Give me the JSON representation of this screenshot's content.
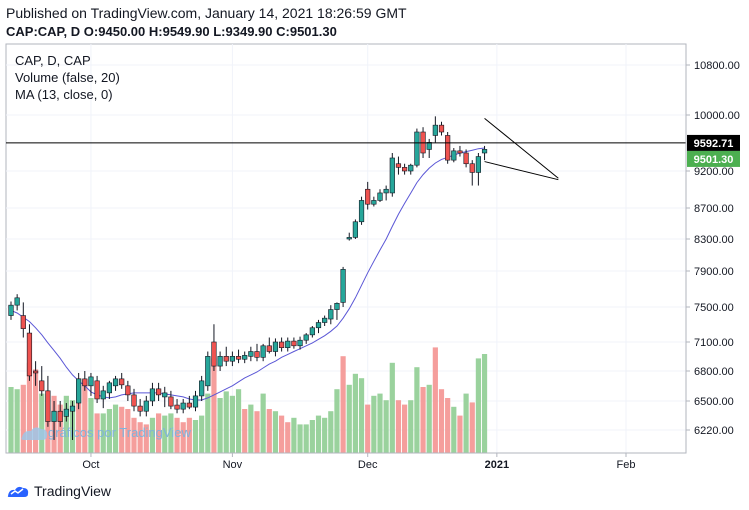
{
  "header": {
    "published": "Published on TradingView.com, January 14, 2021 18:26:59 GMT",
    "symbol": "CAP:CAP, D",
    "ohlc": {
      "o_label": "O:",
      "o": "9450.00",
      "h_label": "H:",
      "h": "9549.90",
      "l_label": "L:",
      "l": "9349.90",
      "c_label": "C:",
      "c": "9501.30"
    }
  },
  "legend": {
    "title": "CAP, D, CAP",
    "volume": "Volume (false, 20)",
    "ma": "MA (13, close, 0)"
  },
  "watermark": "gráficos por TradingView",
  "footer": {
    "brand": "TradingView"
  },
  "colors": {
    "up": "#26a69a",
    "down": "#ef5350",
    "vol_up": "#8fcd92",
    "vol_down": "#f49391",
    "ma": "#5b57d6",
    "price_tag": "#4caf50",
    "hline_tag": "#000000"
  },
  "chart_data": {
    "type": "candlestick",
    "y_ticks": [
      "10800.00",
      "10000.00",
      "9200.00",
      "8700.00",
      "8300.00",
      "7900.00",
      "7500.00",
      "7100.00",
      "6800.00",
      "6500.00",
      "6220.00"
    ],
    "y_tick_values": [
      10800,
      10000,
      9200,
      8700,
      8300,
      7900,
      7500,
      7100,
      6800,
      6500,
      6220
    ],
    "x_labels": [
      "Oct",
      "Nov",
      "Dec",
      "2021",
      "Feb"
    ],
    "x_label_index": [
      13,
      36,
      58,
      79,
      100
    ],
    "log_scale": true,
    "grid": true,
    "horizontal_line": {
      "price": 9592.71,
      "label": "9592.71"
    },
    "last_price": {
      "price": 9501.3,
      "label": "9501.30"
    },
    "triangle_lines": [
      {
        "from": [
          77,
          9950
        ],
        "to": [
          89,
          9100
        ]
      },
      {
        "from": [
          77,
          9330
        ],
        "to": [
          89,
          9080
        ]
      }
    ],
    "candles": [
      {
        "o": 7400,
        "h": 7560,
        "l": 7350,
        "c": 7520
      },
      {
        "o": 7520,
        "h": 7640,
        "l": 7460,
        "c": 7600
      },
      {
        "o": 7400,
        "h": 7550,
        "l": 7150,
        "c": 7250
      },
      {
        "o": 7200,
        "h": 7300,
        "l": 6700,
        "c": 6750
      },
      {
        "o": 6800,
        "h": 6900,
        "l": 6650,
        "c": 6780
      },
      {
        "o": 6700,
        "h": 6850,
        "l": 6550,
        "c": 6600
      },
      {
        "o": 6600,
        "h": 6750,
        "l": 6250,
        "c": 6300
      },
      {
        "o": 6300,
        "h": 6500,
        "l": 6200,
        "c": 6400
      },
      {
        "o": 6400,
        "h": 6500,
        "l": 6250,
        "c": 6300
      },
      {
        "o": 6350,
        "h": 6480,
        "l": 6300,
        "c": 6420
      },
      {
        "o": 6400,
        "h": 6500,
        "l": 6200,
        "c": 6450
      },
      {
        "o": 6480,
        "h": 6780,
        "l": 6420,
        "c": 6720
      },
      {
        "o": 6720,
        "h": 6800,
        "l": 6600,
        "c": 6650
      },
      {
        "o": 6650,
        "h": 6780,
        "l": 6550,
        "c": 6740
      },
      {
        "o": 6700,
        "h": 6750,
        "l": 6480,
        "c": 6520
      },
      {
        "o": 6520,
        "h": 6650,
        "l": 6430,
        "c": 6600
      },
      {
        "o": 6580,
        "h": 6700,
        "l": 6520,
        "c": 6680
      },
      {
        "o": 6650,
        "h": 6750,
        "l": 6600,
        "c": 6720
      },
      {
        "o": 6720,
        "h": 6780,
        "l": 6620,
        "c": 6660
      },
      {
        "o": 6650,
        "h": 6700,
        "l": 6500,
        "c": 6560
      },
      {
        "o": 6560,
        "h": 6620,
        "l": 6400,
        "c": 6450
      },
      {
        "o": 6450,
        "h": 6520,
        "l": 6350,
        "c": 6400
      },
      {
        "o": 6400,
        "h": 6550,
        "l": 6350,
        "c": 6500
      },
      {
        "o": 6500,
        "h": 6680,
        "l": 6450,
        "c": 6620
      },
      {
        "o": 6620,
        "h": 6680,
        "l": 6500,
        "c": 6560
      },
      {
        "o": 6540,
        "h": 6640,
        "l": 6440,
        "c": 6580
      },
      {
        "o": 6540,
        "h": 6600,
        "l": 6420,
        "c": 6450
      },
      {
        "o": 6460,
        "h": 6520,
        "l": 6380,
        "c": 6420
      },
      {
        "o": 6420,
        "h": 6520,
        "l": 6380,
        "c": 6480
      },
      {
        "o": 6480,
        "h": 6550,
        "l": 6420,
        "c": 6440
      },
      {
        "o": 6440,
        "h": 6600,
        "l": 6400,
        "c": 6550
      },
      {
        "o": 6550,
        "h": 6750,
        "l": 6500,
        "c": 6700
      },
      {
        "o": 6650,
        "h": 7000,
        "l": 6600,
        "c": 6950
      },
      {
        "o": 7100,
        "h": 7300,
        "l": 6800,
        "c": 6850
      },
      {
        "o": 6850,
        "h": 7000,
        "l": 6800,
        "c": 6950
      },
      {
        "o": 6950,
        "h": 7050,
        "l": 6850,
        "c": 6900
      },
      {
        "o": 6900,
        "h": 7000,
        "l": 6850,
        "c": 6950
      },
      {
        "o": 6950,
        "h": 7020,
        "l": 6880,
        "c": 6920
      },
      {
        "o": 6920,
        "h": 7000,
        "l": 6880,
        "c": 6960
      },
      {
        "o": 6950,
        "h": 7050,
        "l": 6900,
        "c": 7000
      },
      {
        "o": 7000,
        "h": 7080,
        "l": 6900,
        "c": 6940
      },
      {
        "o": 6940,
        "h": 7080,
        "l": 6900,
        "c": 7060
      },
      {
        "o": 7060,
        "h": 7150,
        "l": 6980,
        "c": 7000
      },
      {
        "o": 7000,
        "h": 7140,
        "l": 6950,
        "c": 7100
      },
      {
        "o": 7100,
        "h": 7150,
        "l": 7000,
        "c": 7040
      },
      {
        "o": 7040,
        "h": 7150,
        "l": 7000,
        "c": 7110
      },
      {
        "o": 7110,
        "h": 7150,
        "l": 7030,
        "c": 7060
      },
      {
        "o": 7060,
        "h": 7160,
        "l": 7020,
        "c": 7120
      },
      {
        "o": 7120,
        "h": 7200,
        "l": 7080,
        "c": 7180
      },
      {
        "o": 7180,
        "h": 7280,
        "l": 7150,
        "c": 7260
      },
      {
        "o": 7260,
        "h": 7350,
        "l": 7200,
        "c": 7320
      },
      {
        "o": 7320,
        "h": 7400,
        "l": 7280,
        "c": 7370
      },
      {
        "o": 7360,
        "h": 7520,
        "l": 7300,
        "c": 7470
      },
      {
        "o": 7470,
        "h": 7550,
        "l": 7350,
        "c": 7540
      },
      {
        "o": 7550,
        "h": 7950,
        "l": 7500,
        "c": 7920
      },
      {
        "o": 8300,
        "h": 8380,
        "l": 8280,
        "c": 8320
      },
      {
        "o": 8320,
        "h": 8550,
        "l": 8300,
        "c": 8520
      },
      {
        "o": 8520,
        "h": 8850,
        "l": 8480,
        "c": 8800
      },
      {
        "o": 8950,
        "h": 9050,
        "l": 8680,
        "c": 8750
      },
      {
        "o": 8750,
        "h": 8850,
        "l": 8720,
        "c": 8800
      },
      {
        "o": 8800,
        "h": 8950,
        "l": 8780,
        "c": 8900
      },
      {
        "o": 8900,
        "h": 9000,
        "l": 8800,
        "c": 8950
      },
      {
        "o": 8900,
        "h": 9450,
        "l": 8850,
        "c": 9380
      },
      {
        "o": 9300,
        "h": 9400,
        "l": 9150,
        "c": 9250
      },
      {
        "o": 9250,
        "h": 9300,
        "l": 9150,
        "c": 9200
      },
      {
        "o": 9200,
        "h": 9300,
        "l": 9150,
        "c": 9280
      },
      {
        "o": 9280,
        "h": 9800,
        "l": 9250,
        "c": 9750
      },
      {
        "o": 9750,
        "h": 9820,
        "l": 9380,
        "c": 9450
      },
      {
        "o": 9500,
        "h": 9650,
        "l": 9380,
        "c": 9600
      },
      {
        "o": 9700,
        "h": 9980,
        "l": 9600,
        "c": 9850
      },
      {
        "o": 9850,
        "h": 9900,
        "l": 9700,
        "c": 9750
      },
      {
        "o": 9700,
        "h": 9750,
        "l": 9300,
        "c": 9350
      },
      {
        "o": 9350,
        "h": 9520,
        "l": 9320,
        "c": 9480
      },
      {
        "o": 9480,
        "h": 9550,
        "l": 9400,
        "c": 9450
      },
      {
        "o": 9450,
        "h": 9500,
        "l": 9250,
        "c": 9300
      },
      {
        "o": 9300,
        "h": 9350,
        "l": 9000,
        "c": 9180
      },
      {
        "o": 9180,
        "h": 9450,
        "l": 9000,
        "c": 9400
      },
      {
        "o": 9450,
        "h": 9550,
        "l": 9350,
        "c": 9501.3
      }
    ],
    "volumes": [
      [
        30,
        "u"
      ],
      [
        29,
        "u"
      ],
      [
        31,
        "d"
      ],
      [
        41,
        "d"
      ],
      [
        38,
        "d"
      ],
      [
        27,
        "u"
      ],
      [
        27,
        "d"
      ],
      [
        26,
        "d"
      ],
      [
        22,
        "d"
      ],
      [
        26,
        "u"
      ],
      [
        24,
        "u"
      ],
      [
        34,
        "d"
      ],
      [
        33,
        "d"
      ],
      [
        25,
        "u"
      ],
      [
        18,
        "d"
      ],
      [
        18,
        "u"
      ],
      [
        20,
        "u"
      ],
      [
        22,
        "u"
      ],
      [
        21,
        "d"
      ],
      [
        20,
        "d"
      ],
      [
        16,
        "d"
      ],
      [
        14,
        "d"
      ],
      [
        13,
        "d"
      ],
      [
        16,
        "u"
      ],
      [
        18,
        "d"
      ],
      [
        17,
        "u"
      ],
      [
        18,
        "u"
      ],
      [
        16,
        "d"
      ],
      [
        14,
        "d"
      ],
      [
        16,
        "d"
      ],
      [
        15,
        "u"
      ],
      [
        17,
        "u"
      ],
      [
        27,
        "u"
      ],
      [
        43,
        "d"
      ],
      [
        25,
        "u"
      ],
      [
        28,
        "u"
      ],
      [
        26,
        "u"
      ],
      [
        29,
        "u"
      ],
      [
        20,
        "d"
      ],
      [
        22,
        "u"
      ],
      [
        19,
        "d"
      ],
      [
        27,
        "u"
      ],
      [
        20,
        "d"
      ],
      [
        19,
        "u"
      ],
      [
        17,
        "d"
      ],
      [
        14,
        "d"
      ],
      [
        16,
        "u"
      ],
      [
        13,
        "u"
      ],
      [
        13,
        "u"
      ],
      [
        15,
        "u"
      ],
      [
        17,
        "u"
      ],
      [
        16,
        "u"
      ],
      [
        19,
        "u"
      ],
      [
        29,
        "u"
      ],
      [
        44,
        "d"
      ],
      [
        31,
        "u"
      ],
      [
        36,
        "u"
      ],
      [
        34,
        "u"
      ],
      [
        22,
        "d"
      ],
      [
        26,
        "u"
      ],
      [
        27,
        "u"
      ],
      [
        24,
        "u"
      ],
      [
        41,
        "u"
      ],
      [
        24,
        "d"
      ],
      [
        22,
        "d"
      ],
      [
        24,
        "u"
      ],
      [
        39,
        "u"
      ],
      [
        30,
        "d"
      ],
      [
        31,
        "u"
      ],
      [
        48,
        "d"
      ],
      [
        29,
        "d"
      ],
      [
        25,
        "d"
      ],
      [
        21,
        "u"
      ],
      [
        17,
        "d"
      ],
      [
        27,
        "u"
      ],
      [
        23,
        "d"
      ],
      [
        43,
        "u"
      ],
      [
        45,
        "u"
      ]
    ],
    "ma": [
      7460,
      7430,
      7380,
      7330,
      7260,
      7180,
      7090,
      7010,
      6930,
      6840,
      6760,
      6700,
      6650,
      6590,
      6560,
      6540,
      6530,
      6540,
      6560,
      6570,
      6580,
      6580,
      6580,
      6580,
      6580,
      6570,
      6560,
      6550,
      6540,
      6520,
      6510,
      6510,
      6530,
      6560,
      6590,
      6620,
      6650,
      6690,
      6730,
      6760,
      6790,
      6830,
      6870,
      6900,
      6940,
      6970,
      7000,
      7030,
      7060,
      7090,
      7130,
      7170,
      7220,
      7280,
      7370,
      7480,
      7600,
      7740,
      7880,
      8020,
      8160,
      8300,
      8460,
      8620,
      8760,
      8900,
      9040,
      9150,
      9240,
      9310,
      9360,
      9390,
      9420,
      9450,
      9470,
      9490,
      9510,
      9520
    ]
  }
}
